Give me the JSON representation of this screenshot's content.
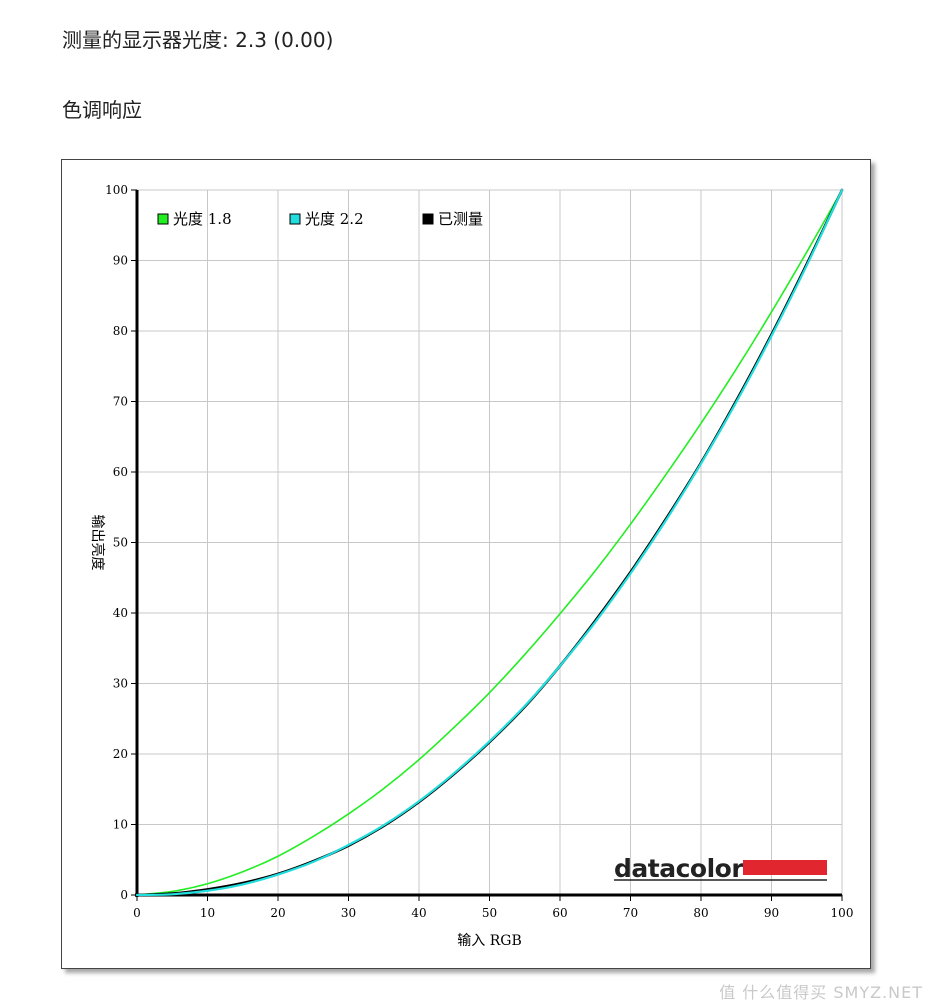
{
  "header": {
    "gamma_label": "测量的显示器光度:",
    "gamma_value": "2.3 (0.00)",
    "section_title": "色调响应"
  },
  "logo": {
    "text": "datacolor",
    "bar_color": "#e2262f"
  },
  "watermark": {
    "text": "值 什么值得买 SMYZ.NET"
  },
  "chart_data": {
    "type": "line",
    "xlabel": "输入 RGB",
    "ylabel": "输出亮度",
    "xlim": [
      0,
      100
    ],
    "ylim": [
      0,
      100
    ],
    "xticks": [
      0,
      10,
      20,
      30,
      40,
      50,
      60,
      70,
      80,
      90,
      100
    ],
    "yticks": [
      0,
      10,
      20,
      30,
      40,
      50,
      60,
      70,
      80,
      90,
      100
    ],
    "grid": true,
    "legend_position": "top-left",
    "x": [
      0,
      5,
      10,
      15,
      20,
      25,
      30,
      35,
      40,
      45,
      50,
      55,
      60,
      65,
      70,
      75,
      80,
      85,
      90,
      95,
      100
    ],
    "series": [
      {
        "name": "光度 1.8",
        "color": "#22ee22",
        "values": [
          0,
          0.5,
          1.6,
          3.3,
          5.5,
          8.3,
          11.5,
          15.1,
          19.2,
          23.8,
          28.7,
          34.1,
          39.9,
          46.0,
          52.6,
          59.6,
          66.9,
          74.6,
          82.7,
          91.2,
          100
        ]
      },
      {
        "name": "光度 2.2",
        "color": "#22dddd",
        "values": [
          0,
          0.1,
          0.6,
          1.5,
          2.9,
          4.7,
          7.1,
          9.9,
          13.3,
          17.3,
          21.8,
          26.8,
          32.5,
          38.7,
          45.6,
          53.1,
          61.2,
          69.9,
          79.3,
          89.3,
          100
        ]
      },
      {
        "name": "已测量",
        "color": "#000000",
        "values": [
          0,
          0.2,
          0.8,
          1.7,
          3.0,
          4.8,
          7.0,
          9.8,
          13.2,
          17.2,
          21.7,
          26.7,
          32.5,
          38.9,
          45.8,
          53.3,
          61.3,
          70.1,
          79.5,
          89.5,
          100
        ]
      }
    ]
  }
}
